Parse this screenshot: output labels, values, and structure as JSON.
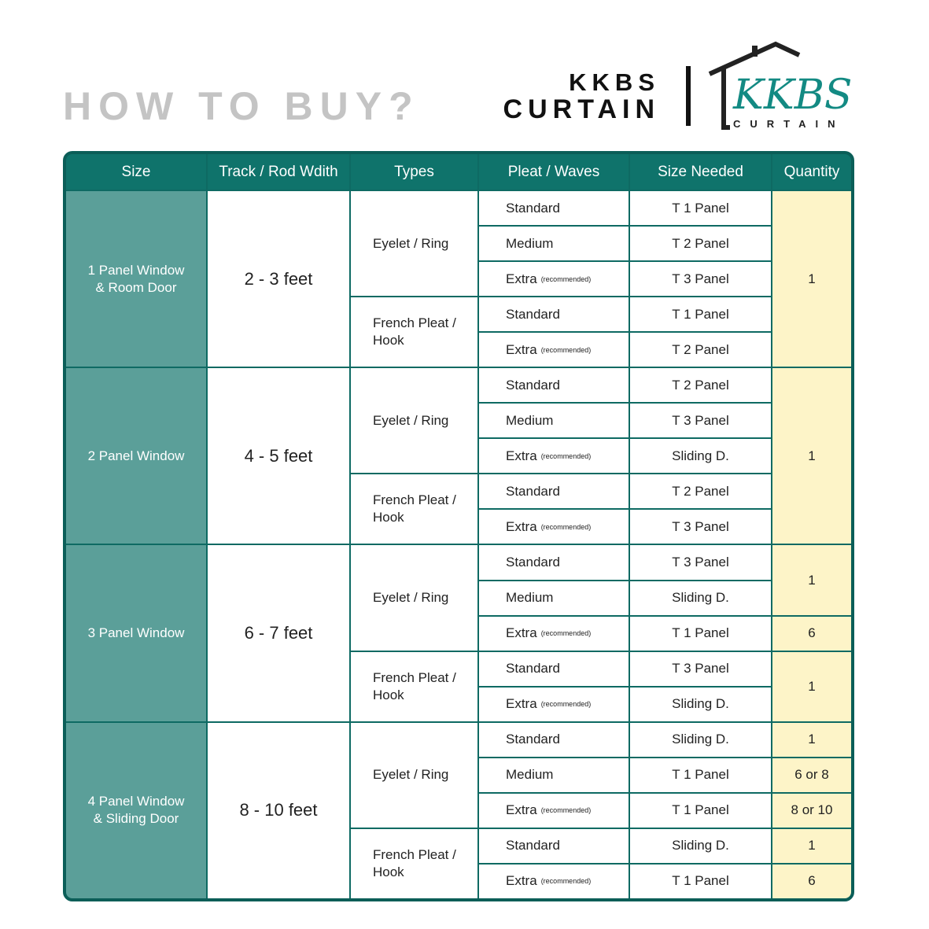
{
  "title": "HOW TO BUY?",
  "brand": {
    "line1": "KKBS",
    "line2": "CURTAIN",
    "logo_script": "KKBS",
    "logo_sub": "CURTAIN"
  },
  "colors": {
    "header": "#0f736b",
    "size_column": "#5b9f99",
    "quantity": "#fdf4c8",
    "border": "#0e6a63",
    "logo_teal": "#138a83"
  },
  "headers": [
    "Size",
    "Track / Rod Wdith",
    "Types",
    "Pleat / Waves",
    "Size Needed",
    "Quantity"
  ],
  "groups": [
    {
      "size": "1 Panel Window\n& Room Door",
      "track": "2  - 3 feet",
      "types": [
        {
          "label": "Eyelet / Ring",
          "rows": 3
        },
        {
          "label": "French Pleat /\nHook",
          "rows": 2
        }
      ],
      "rows": [
        {
          "pleat": "Standard",
          "note": "",
          "need": "T 1 Panel"
        },
        {
          "pleat": "Medium",
          "note": "",
          "need": "T 2 Panel"
        },
        {
          "pleat": "Extra",
          "note": "(recommended)",
          "need": "T 3 Panel"
        },
        {
          "pleat": "Standard",
          "note": "",
          "need": "T 1 Panel"
        },
        {
          "pleat": "Extra",
          "note": "(recommended)",
          "need": "T 2 Panel"
        }
      ],
      "quantities": [
        {
          "value": "1",
          "rows": 5
        }
      ]
    },
    {
      "size": "2 Panel Window",
      "track": "4 - 5 feet",
      "types": [
        {
          "label": "Eyelet / Ring",
          "rows": 3
        },
        {
          "label": "French Pleat /\nHook",
          "rows": 2
        }
      ],
      "rows": [
        {
          "pleat": "Standard",
          "note": "",
          "need": "T 2 Panel"
        },
        {
          "pleat": "Medium",
          "note": "",
          "need": "T 3 Panel"
        },
        {
          "pleat": "Extra",
          "note": "(recommended)",
          "need": "Sliding D."
        },
        {
          "pleat": "Standard",
          "note": "",
          "need": "T 2 Panel"
        },
        {
          "pleat": "Extra",
          "note": "(recommended)",
          "need": "T 3 Panel"
        }
      ],
      "quantities": [
        {
          "value": "1",
          "rows": 5
        }
      ]
    },
    {
      "size": "3 Panel Window",
      "track": "6 - 7 feet",
      "types": [
        {
          "label": "Eyelet / Ring",
          "rows": 3
        },
        {
          "label": "French Pleat /\nHook",
          "rows": 2
        }
      ],
      "rows": [
        {
          "pleat": "Standard",
          "note": "",
          "need": "T 3 Panel"
        },
        {
          "pleat": "Medium",
          "note": "",
          "need": "Sliding D."
        },
        {
          "pleat": "Extra",
          "note": "(recommended)",
          "need": "T 1 Panel"
        },
        {
          "pleat": "Standard",
          "note": "",
          "need": "T 3 Panel"
        },
        {
          "pleat": "Extra",
          "note": "(recommended)",
          "need": "Sliding D."
        }
      ],
      "quantities": [
        {
          "value": "1",
          "rows": 2
        },
        {
          "value": "6",
          "rows": 1
        },
        {
          "value": "1",
          "rows": 2
        }
      ]
    },
    {
      "size": "4 Panel Window\n& Sliding Door",
      "track": "8 - 10 feet",
      "types": [
        {
          "label": "Eyelet / Ring",
          "rows": 3
        },
        {
          "label": "French Pleat /\nHook",
          "rows": 2
        }
      ],
      "rows": [
        {
          "pleat": "Standard",
          "note": "",
          "need": "Sliding D."
        },
        {
          "pleat": "Medium",
          "note": "",
          "need": "T 1 Panel"
        },
        {
          "pleat": "Extra",
          "note": "(recommended)",
          "need": "T 1 Panel"
        },
        {
          "pleat": "Standard",
          "note": "",
          "need": "Sliding D."
        },
        {
          "pleat": "Extra",
          "note": "(recommended)",
          "need": "T 1 Panel"
        }
      ],
      "quantities": [
        {
          "value": "1",
          "rows": 1
        },
        {
          "value": "6 or 8",
          "rows": 1
        },
        {
          "value": "8 or 10",
          "rows": 1
        },
        {
          "value": "1",
          "rows": 1
        },
        {
          "value": "6",
          "rows": 1
        }
      ]
    }
  ]
}
